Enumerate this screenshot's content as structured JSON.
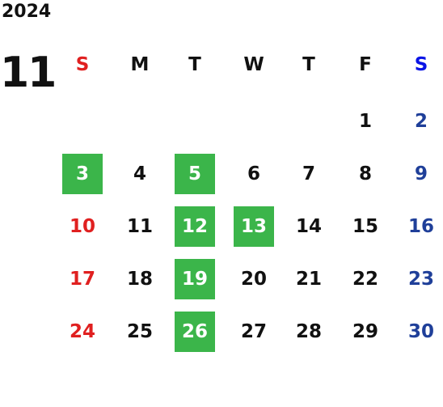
{
  "year": "2024",
  "month": "11",
  "weekdays": [
    "S",
    "M",
    "T",
    "W",
    "T",
    "F",
    "S"
  ],
  "weeks": [
    [
      null,
      null,
      null,
      null,
      null,
      {
        "day": "1"
      },
      {
        "day": "2"
      }
    ],
    [
      {
        "day": "3",
        "marked": true
      },
      {
        "day": "4"
      },
      {
        "day": "5",
        "marked": true
      },
      {
        "day": "6"
      },
      {
        "day": "7"
      },
      {
        "day": "8"
      },
      {
        "day": "9"
      }
    ],
    [
      {
        "day": "10"
      },
      {
        "day": "11"
      },
      {
        "day": "12",
        "marked": true
      },
      {
        "day": "13",
        "marked": true
      },
      {
        "day": "14"
      },
      {
        "day": "15"
      },
      {
        "day": "16"
      }
    ],
    [
      {
        "day": "17"
      },
      {
        "day": "18"
      },
      {
        "day": "19",
        "marked": true
      },
      {
        "day": "20"
      },
      {
        "day": "21"
      },
      {
        "day": "22"
      },
      {
        "day": "23"
      }
    ],
    [
      {
        "day": "24"
      },
      {
        "day": "25"
      },
      {
        "day": "26",
        "marked": true
      },
      {
        "day": "27"
      },
      {
        "day": "28"
      },
      {
        "day": "29"
      },
      {
        "day": "30"
      }
    ]
  ]
}
